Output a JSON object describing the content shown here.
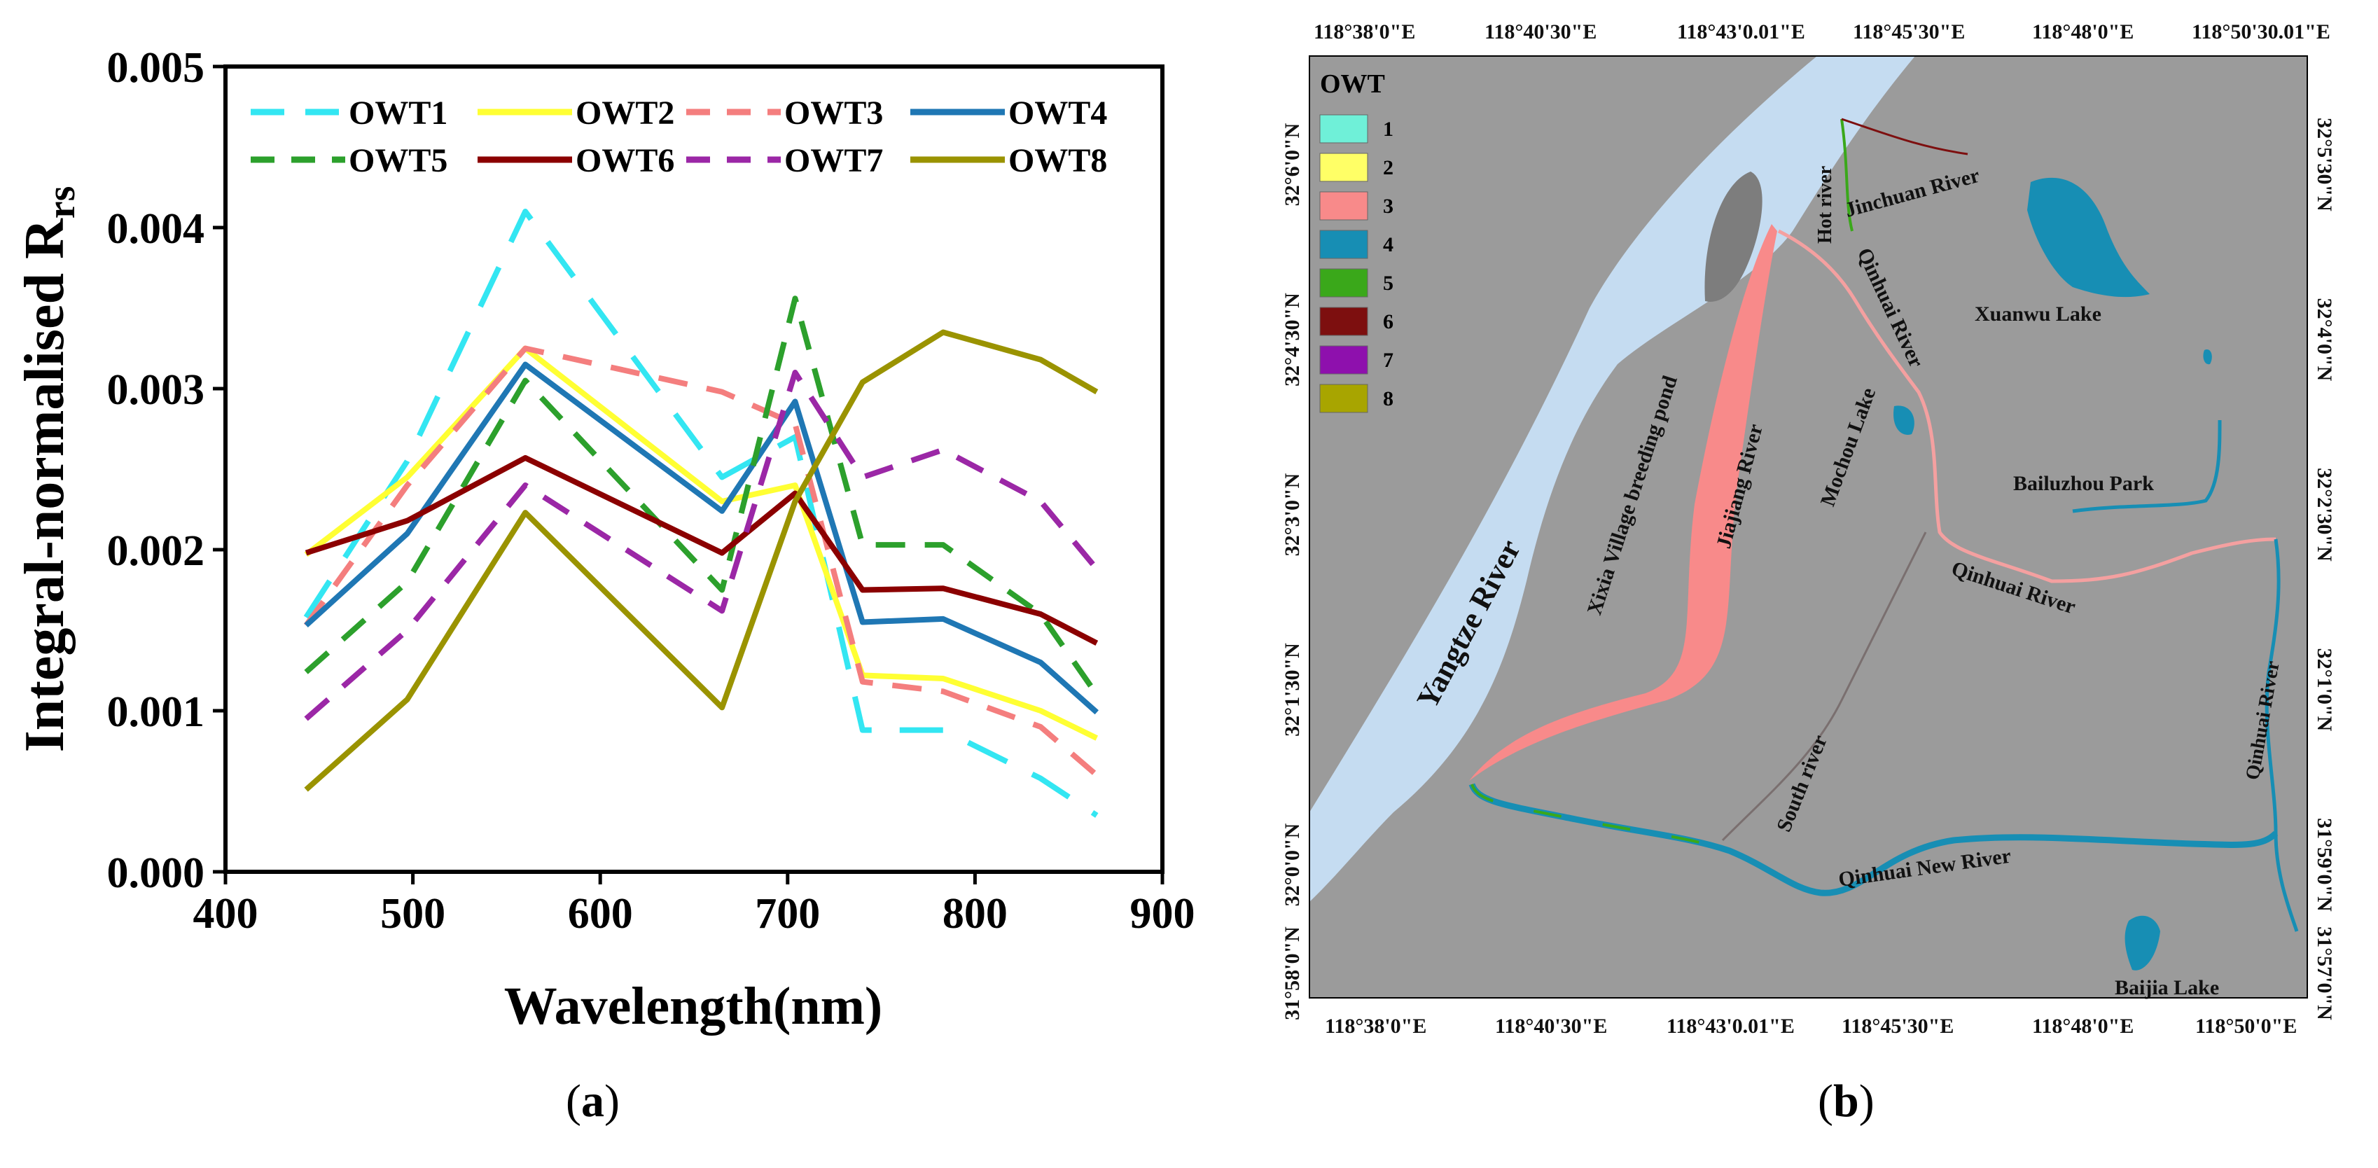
{
  "chart_data": {
    "type": "line",
    "title": "",
    "xlabel": "Wavelength(nm)",
    "ylabel_main": "Integral-normalised R",
    "ylabel_sub": "rs",
    "x": [
      443,
      497,
      560,
      665,
      704,
      740,
      783,
      835,
      865
    ],
    "xlim": [
      400,
      900
    ],
    "ylim": [
      0.0,
      0.005
    ],
    "xticks": [
      "400",
      "500",
      "600",
      "700",
      "800",
      "900"
    ],
    "yticks": [
      "0.000",
      "0.001",
      "0.002",
      "0.003",
      "0.004",
      "0.005"
    ],
    "legend": "top-left",
    "series": [
      {
        "name": "OWT1",
        "color": "#33e6f2",
        "style": "longdash",
        "values": [
          0.00158,
          0.00255,
          0.0041,
          0.00245,
          0.0027,
          0.00088,
          0.00088,
          0.00058,
          0.00035
        ]
      },
      {
        "name": "OWT2",
        "color": "#ffff33",
        "style": "solid",
        "values": [
          0.00197,
          0.00245,
          0.00325,
          0.0023,
          0.0024,
          0.00122,
          0.0012,
          0.001,
          0.00083
        ]
      },
      {
        "name": "OWT3",
        "color": "#f47e7e",
        "style": "dash",
        "values": [
          0.00153,
          0.0024,
          0.00325,
          0.00298,
          0.00278,
          0.00118,
          0.00112,
          0.0009,
          0.0006
        ]
      },
      {
        "name": "OWT4",
        "color": "#1f77b4",
        "style": "solid",
        "values": [
          0.00153,
          0.0021,
          0.00315,
          0.00224,
          0.00292,
          0.00155,
          0.00157,
          0.0013,
          0.00099
        ]
      },
      {
        "name": "OWT5",
        "color": "#2ca02c",
        "style": "dash",
        "values": [
          0.00124,
          0.0018,
          0.00305,
          0.00175,
          0.00356,
          0.00203,
          0.00203,
          0.0016,
          0.0011
        ]
      },
      {
        "name": "OWT6",
        "color": "#8b0000",
        "style": "solid",
        "values": [
          0.00198,
          0.00218,
          0.00257,
          0.00198,
          0.00235,
          0.00175,
          0.00176,
          0.0016,
          0.00142
        ]
      },
      {
        "name": "OWT7",
        "color": "#9b27a6",
        "style": "dash",
        "values": [
          0.00095,
          0.0015,
          0.0024,
          0.00162,
          0.0031,
          0.00245,
          0.00262,
          0.0023,
          0.00188
        ]
      },
      {
        "name": "OWT8",
        "color": "#9a9300",
        "style": "solid",
        "values": [
          0.00051,
          0.00107,
          0.00223,
          0.00102,
          0.0023,
          0.00304,
          0.00335,
          0.00318,
          0.00298
        ]
      }
    ]
  },
  "map": {
    "legend_title": "OWT",
    "legend_items": [
      {
        "label": "1",
        "color": "#6ff0d8"
      },
      {
        "label": "2",
        "color": "#ffff66"
      },
      {
        "label": "3",
        "color": "#f88a8a"
      },
      {
        "label": "4",
        "color": "#178eb4"
      },
      {
        "label": "5",
        "color": "#3aa81a"
      },
      {
        "label": "6",
        "color": "#7d0f0f"
      },
      {
        "label": "7",
        "color": "#8e10ad"
      },
      {
        "label": "8",
        "color": "#a8a500"
      }
    ],
    "top_ticks": [
      "118°38'0\"E",
      "118°40'30\"E",
      "118°43'0.01\"E",
      "118°45'30\"E",
      "118°48'0\"E",
      "118°50'30.01\"E"
    ],
    "bottom_ticks": [
      "118°38'0\"E",
      "118°40'30\"E",
      "118°43'0.01\"E",
      "118°45'30\"E",
      "118°48'0\"E",
      "118°50'0\"E"
    ],
    "left_ticks": [
      "32°6'0\"N",
      "32°4'30\"N",
      "32°3'0\"N",
      "32°1'30\"N",
      "32°0'0\"N",
      "31°58'0\"N"
    ],
    "right_ticks": [
      "32°5'30\"N",
      "32°4'0\"N",
      "32°2'30\"N",
      "32°1'0\"N",
      "31°59'0\"N",
      "31°57'0\"N"
    ],
    "labels": {
      "yangtze": "Yangtze River",
      "hot_river": "Hot river",
      "jinchuan": "Jinchuan River",
      "xuanwu": "Xuanwu Lake",
      "qinhuai_upper": "Qinhuai River",
      "mochou": "Mochou Lake",
      "bailuzhou": "Bailuzhou Park",
      "jiajiang": "Jiajiang River",
      "xixia": "Xixia Village breeding pond",
      "qinhuai_mid": "Qinhuai River",
      "qinhuai_right": "Qinhuai River",
      "south_river": "South river",
      "qinhuai_new": "Qinhuai New River",
      "baijia": "Baijia Lake"
    },
    "colors": {
      "land": "#9b9b9b",
      "river": "#c5dcf1",
      "island": "#7d7d7d"
    }
  },
  "captions": {
    "a": "a",
    "b": "b"
  }
}
